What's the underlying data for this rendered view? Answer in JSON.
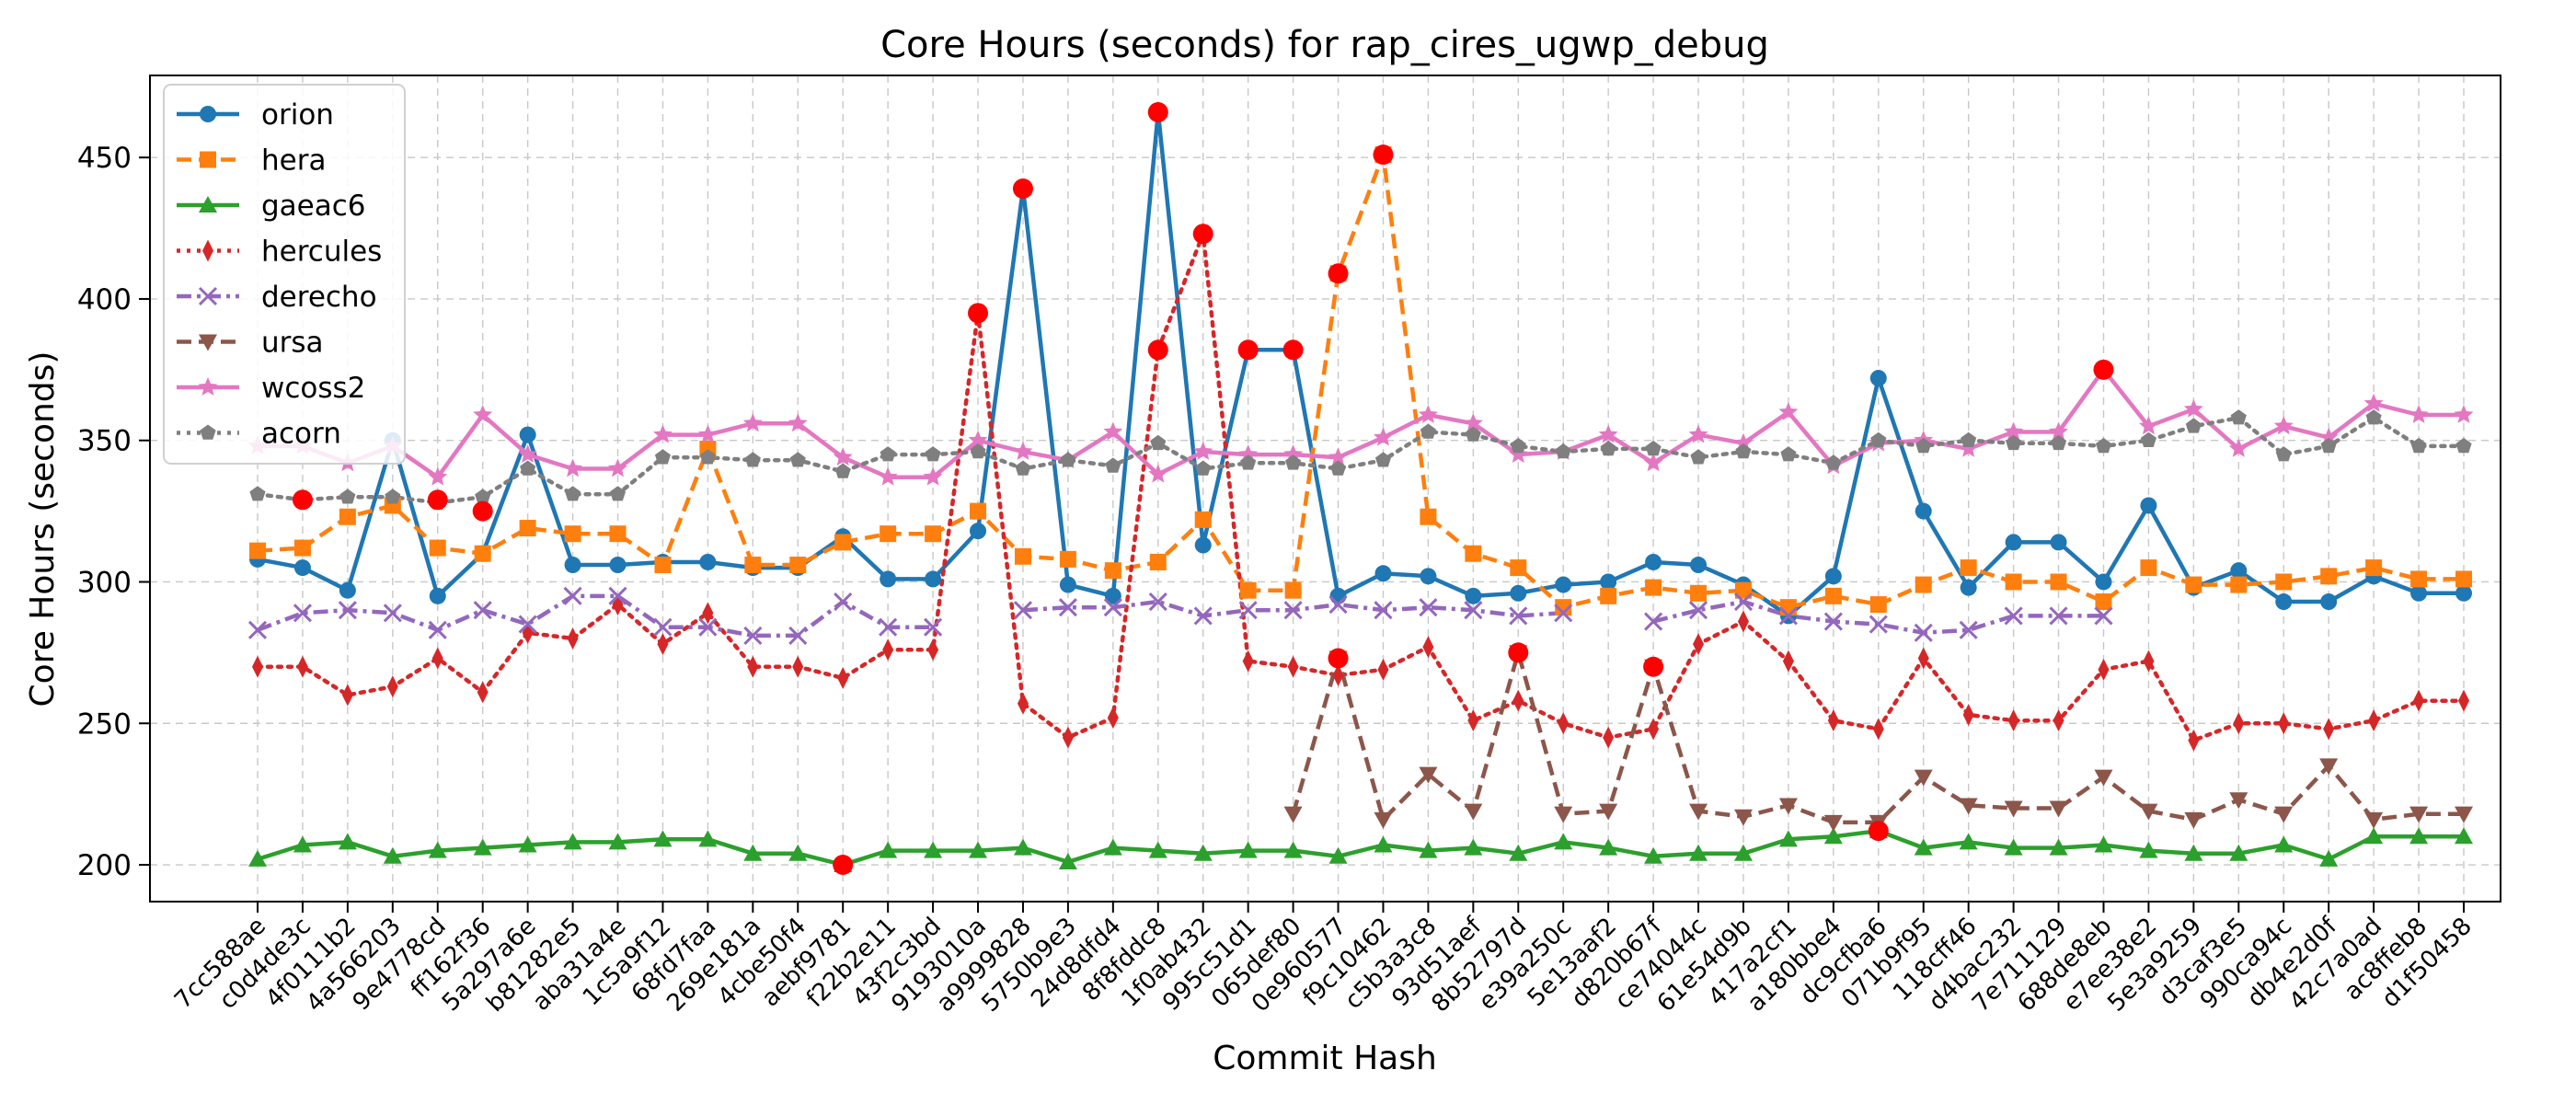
{
  "chart_data": {
    "type": "line",
    "title": "Core Hours (seconds) for rap_cires_ugwp_debug",
    "xlabel": "Commit Hash",
    "ylabel": "Core Hours (seconds)",
    "ylim": [
      187,
      479
    ],
    "yticks": [
      200,
      250,
      300,
      350,
      400,
      450
    ],
    "grid": true,
    "legend_position": "top-left",
    "categories": [
      "7cc588ae",
      "c0d4de3c",
      "4f0111b2",
      "4a566203",
      "9e4778cd",
      "ff162f36",
      "5a297a6e",
      "b81282e5",
      "aba31a4e",
      "1c5a9f12",
      "68fd7faa",
      "269e181a",
      "4cbe50f4",
      "aebf9781",
      "f22b2e11",
      "43f2c3bd",
      "9193010a",
      "a9999828",
      "5750b9e3",
      "24d8dfd4",
      "8f8fddc8",
      "1f0ab432",
      "995c51d1",
      "065def80",
      "0e960577",
      "f9c10462",
      "c5b3a3c8",
      "93d51aef",
      "8b52797d",
      "e39a250c",
      "5e13aaf2",
      "d820b67f",
      "ce74044c",
      "61e54d9b",
      "417a2cf1",
      "a180bbe4",
      "dc9cfba6",
      "071b9f95",
      "118cff46",
      "d4bac232",
      "7e711129",
      "688de8eb",
      "e7ee38e2",
      "5e3a9259",
      "d3caf3e5",
      "990ca94c",
      "db4e2d0f",
      "42c7a0ad",
      "ac8ffeb8",
      "d1f50458"
    ],
    "series": [
      {
        "name": "orion",
        "color": "#1f77b4",
        "marker": "circle",
        "line": "solid",
        "values": [
          308,
          305,
          297,
          350,
          295,
          310,
          352,
          306,
          306,
          307,
          307,
          305,
          305,
          316,
          301,
          301,
          318,
          439,
          299,
          295,
          466,
          313,
          382,
          382,
          295,
          303,
          302,
          295,
          296,
          299,
          300,
          307,
          306,
          299,
          288,
          302,
          372,
          325,
          298,
          314,
          314,
          300,
          327,
          298,
          304,
          293,
          293,
          302,
          296,
          296
        ]
      },
      {
        "name": "hera",
        "color": "#ff7f0e",
        "marker": "square",
        "line": "dashed",
        "values": [
          311,
          312,
          323,
          327,
          312,
          310,
          319,
          317,
          317,
          306,
          347,
          306,
          306,
          314,
          317,
          317,
          325,
          309,
          308,
          304,
          307,
          322,
          297,
          297,
          409,
          451,
          323,
          310,
          305,
          291,
          295,
          298,
          296,
          297,
          291,
          295,
          292,
          299,
          305,
          300,
          300,
          293,
          305,
          299,
          299,
          300,
          302,
          305,
          301,
          301
        ]
      },
      {
        "name": "gaeac6",
        "color": "#2ca02c",
        "marker": "triangle-up",
        "line": "solid",
        "values": [
          202,
          207,
          208,
          203,
          205,
          206,
          207,
          208,
          208,
          209,
          209,
          204,
          204,
          200,
          205,
          205,
          205,
          206,
          201,
          206,
          205,
          204,
          205,
          205,
          203,
          207,
          205,
          206,
          204,
          208,
          206,
          203,
          204,
          204,
          209,
          210,
          212,
          206,
          208,
          206,
          206,
          207,
          205,
          204,
          204,
          207,
          202,
          210,
          210,
          210
        ]
      },
      {
        "name": "hercules",
        "color": "#d62728",
        "marker": "thin-diamond",
        "line": "dotted",
        "values": [
          270,
          270,
          260,
          263,
          273,
          261,
          282,
          280,
          292,
          278,
          289,
          270,
          270,
          266,
          276,
          276,
          395,
          257,
          245,
          252,
          382,
          423,
          272,
          270,
          267,
          269,
          277,
          251,
          258,
          250,
          245,
          248,
          278,
          286,
          272,
          251,
          248,
          273,
          253,
          251,
          251,
          269,
          272,
          244,
          250,
          250,
          248,
          251,
          258,
          258
        ]
      },
      {
        "name": "derecho",
        "color": "#9467bd",
        "marker": "x",
        "line": "dashdot",
        "values": [
          283,
          289,
          290,
          289,
          283,
          290,
          285,
          295,
          295,
          284,
          284,
          281,
          281,
          293,
          284,
          284,
          null,
          290,
          291,
          291,
          293,
          288,
          290,
          290,
          292,
          290,
          291,
          290,
          288,
          289,
          null,
          286,
          290,
          293,
          288,
          286,
          285,
          282,
          283,
          288,
          288,
          288,
          null,
          null,
          null,
          null,
          null,
          null,
          null,
          null
        ]
      },
      {
        "name": "ursa",
        "color": "#8c564b",
        "marker": "triangle-down",
        "line": "dashed",
        "values": [
          null,
          null,
          null,
          null,
          null,
          null,
          null,
          null,
          null,
          null,
          null,
          null,
          null,
          null,
          null,
          null,
          null,
          null,
          null,
          null,
          null,
          null,
          null,
          218,
          273,
          216,
          232,
          219,
          275,
          218,
          219,
          270,
          219,
          217,
          221,
          215,
          215,
          231,
          221,
          220,
          220,
          231,
          219,
          216,
          223,
          218,
          235,
          216,
          218,
          218
        ]
      },
      {
        "name": "wcoss2",
        "color": "#e377c2",
        "marker": "star",
        "line": "solid",
        "values": [
          348,
          348,
          342,
          348,
          337,
          359,
          345,
          340,
          340,
          352,
          352,
          356,
          356,
          344,
          337,
          337,
          350,
          346,
          343,
          353,
          338,
          346,
          345,
          345,
          344,
          351,
          359,
          356,
          345,
          346,
          352,
          342,
          352,
          349,
          360,
          341,
          349,
          350,
          347,
          353,
          353,
          375,
          355,
          361,
          347,
          355,
          351,
          363,
          359,
          359
        ]
      },
      {
        "name": "acorn",
        "color": "#7f7f7f",
        "marker": "pentagon",
        "line": "dotted",
        "values": [
          331,
          329,
          330,
          330,
          328,
          330,
          340,
          331,
          331,
          344,
          344,
          343,
          343,
          339,
          345,
          345,
          346,
          340,
          343,
          341,
          349,
          340,
          342,
          342,
          340,
          343,
          353,
          352,
          348,
          346,
          347,
          347,
          344,
          346,
          345,
          342,
          350,
          348,
          350,
          349,
          349,
          348,
          350,
          355,
          358,
          345,
          348,
          358,
          348,
          348
        ]
      }
    ],
    "highlight_points": [
      {
        "category": "c0d4de3c",
        "value": 329
      },
      {
        "category": "9e4778cd",
        "value": 329
      },
      {
        "category": "ff162f36",
        "value": 325
      },
      {
        "category": "aebf9781",
        "value": 200
      },
      {
        "category": "9193010a",
        "value": 395
      },
      {
        "category": "a9999828",
        "value": 439
      },
      {
        "category": "8f8fddc8",
        "value": 466
      },
      {
        "category": "8f8fddc8",
        "value": 382
      },
      {
        "category": "1f0ab432",
        "value": 423
      },
      {
        "category": "995c51d1",
        "value": 382
      },
      {
        "category": "065def80",
        "value": 382
      },
      {
        "category": "0e960577",
        "value": 409
      },
      {
        "category": "0e960577",
        "value": 273
      },
      {
        "category": "f9c10462",
        "value": 451
      },
      {
        "category": "8b52797d",
        "value": 275
      },
      {
        "category": "d820b67f",
        "value": 270
      },
      {
        "category": "dc9cfba6",
        "value": 212
      },
      {
        "category": "688de8eb",
        "value": 375
      }
    ],
    "highlight_color": "#ff0000"
  }
}
